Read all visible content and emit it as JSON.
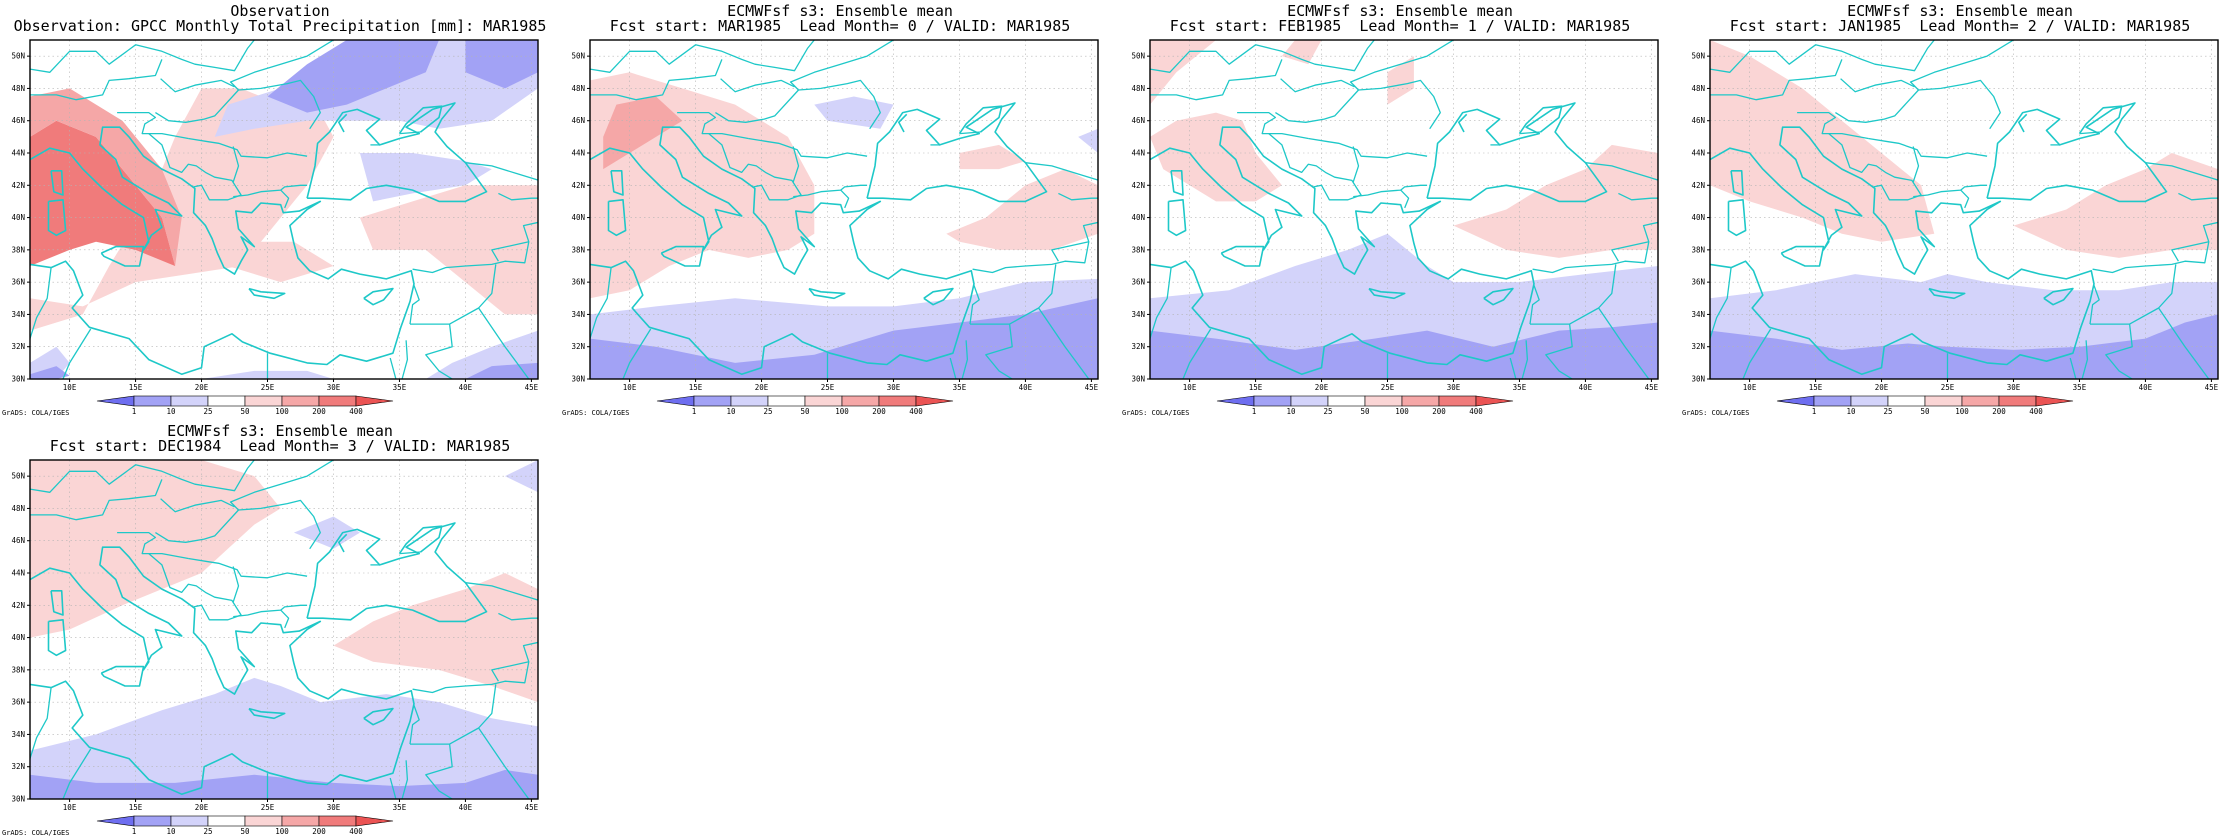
{
  "panels": [
    {
      "title": "Observation",
      "subtitle": "Observation: GPCC Monthly Total Precipitation [mm]: MAR1985",
      "variant": "obs"
    },
    {
      "title": "ECMWFsf s3: Ensemble mean",
      "subtitle": "Fcst start: MAR1985  Lead Month= 0 / VALID: MAR1985",
      "variant": "lead0"
    },
    {
      "title": "ECMWFsf s3: Ensemble mean",
      "subtitle": "Fcst start: FEB1985  Lead Month= 1 / VALID: MAR1985",
      "variant": "lead1"
    },
    {
      "title": "ECMWFsf s3: Ensemble mean",
      "subtitle": "Fcst start: JAN1985  Lead Month= 2 / VALID: MAR1985",
      "variant": "lead2"
    },
    {
      "title": "ECMWFsf s3: Ensemble mean",
      "subtitle": "Fcst start: DEC1984  Lead Month= 3 / VALID: MAR1985",
      "variant": "lead3"
    }
  ],
  "axes": {
    "lon_labels": [
      "10E",
      "15E",
      "20E",
      "25E",
      "30E",
      "35E",
      "40E",
      "45E"
    ],
    "lat_labels": [
      "30N",
      "32N",
      "34N",
      "36N",
      "38N",
      "40N",
      "42N",
      "44N",
      "46N",
      "48N",
      "50N"
    ],
    "lon_range": [
      7,
      45.5
    ],
    "lat_range": [
      30,
      51
    ]
  },
  "colorbar": {
    "labels": [
      "1",
      "10",
      "25",
      "50",
      "100",
      "200",
      "400"
    ],
    "colors": [
      "#6e6ef0",
      "#a2a2f5",
      "#d3d3fa",
      "#ffffff",
      "#fad5d5",
      "#f5a7a7",
      "#f07b7b",
      "#eb5454"
    ]
  },
  "credit": "GrADS: COLA/IGES",
  "colors": {
    "coast": "#1ec8c8",
    "grid": "#b4b4b4"
  }
}
